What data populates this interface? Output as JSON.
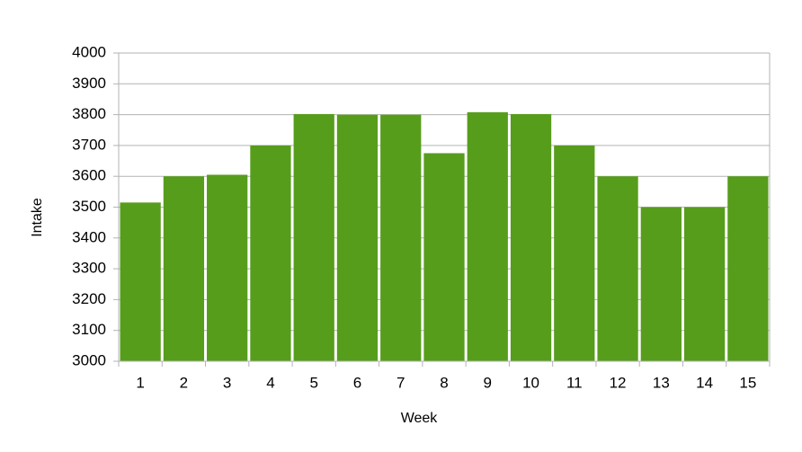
{
  "chart_data": {
    "type": "bar",
    "x_label": "Week",
    "y_label": "Intake",
    "categories": [
      "1",
      "2",
      "3",
      "4",
      "5",
      "6",
      "7",
      "8",
      "9",
      "10",
      "11",
      "12",
      "13",
      "14",
      "15"
    ],
    "values": [
      3515,
      3600,
      3605,
      3700,
      3802,
      3800,
      3800,
      3675,
      3808,
      3802,
      3700,
      3600,
      3500,
      3500,
      3600
    ],
    "color": "#579d1c",
    "ylim": [
      3000,
      4000
    ],
    "yticks": [
      3000,
      3100,
      3200,
      3300,
      3400,
      3500,
      3600,
      3700,
      3800,
      3900,
      4000
    ],
    "grid": true
  }
}
